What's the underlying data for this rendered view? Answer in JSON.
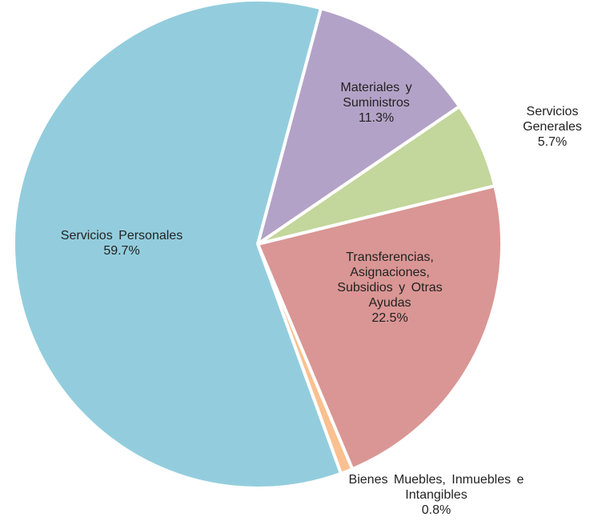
{
  "chart_data": {
    "type": "pie",
    "categories": [
      "Materiales y Suministros",
      "Servicios Generales",
      "Transferencias, Asignaciones, Subsidios y Otras Ayudas",
      "Bienes Muebles, Inmuebles e Intangibles",
      "Servicios Personales"
    ],
    "values": [
      11.3,
      5.7,
      22.5,
      0.8,
      59.7
    ],
    "value_labels": [
      "11.3%",
      "5.7%",
      "22.5%",
      "0.8%",
      "59.7%"
    ],
    "colors": [
      "#b3a2c7",
      "#c3d69b",
      "#d99694",
      "#fac090",
      "#93cddd"
    ]
  }
}
